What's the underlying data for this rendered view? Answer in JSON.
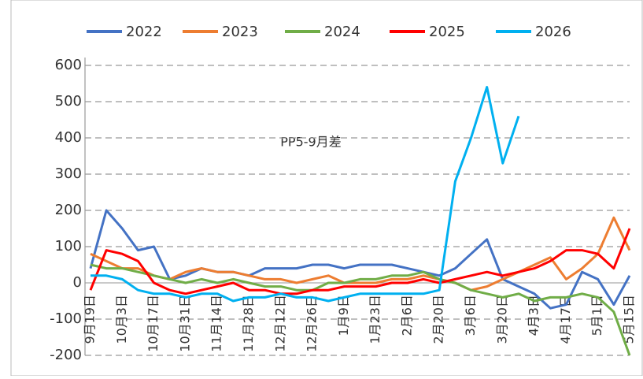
{
  "chart_data": {
    "type": "line",
    "annotation": "PP5-9月差",
    "categories": [
      "9月19日",
      null,
      "10月3日",
      null,
      "10月17日",
      null,
      "10月31日",
      null,
      "11月14日",
      null,
      "11月28日",
      null,
      "12月12日",
      null,
      "12月26日",
      null,
      "1月9日",
      null,
      "1月23日",
      null,
      "2月6日",
      null,
      "2月20日",
      null,
      "3月6日",
      null,
      "3月20日",
      null,
      "4月3日",
      null,
      "4月17日",
      null,
      "5月1日",
      null,
      "5月15日"
    ],
    "series": [
      {
        "name": "2022",
        "color": "#4472c4",
        "values": [
          40,
          200,
          150,
          90,
          100,
          10,
          20,
          40,
          30,
          30,
          20,
          40,
          40,
          40,
          50,
          50,
          40,
          50,
          50,
          50,
          40,
          30,
          20,
          40,
          80,
          120,
          10,
          -10,
          -30,
          -70,
          -60,
          30,
          10,
          -60,
          20
        ]
      },
      {
        "name": "2023",
        "color": "#ed7d31",
        "values": [
          80,
          60,
          40,
          40,
          20,
          10,
          30,
          40,
          30,
          30,
          20,
          10,
          10,
          0,
          10,
          20,
          0,
          0,
          0,
          10,
          10,
          20,
          10,
          0,
          -20,
          -10,
          10,
          30,
          50,
          70,
          10,
          40,
          80,
          180,
          90
        ]
      },
      {
        "name": "2024",
        "color": "#70ad47",
        "values": [
          50,
          40,
          40,
          30,
          20,
          10,
          0,
          10,
          0,
          10,
          0,
          -10,
          -10,
          -20,
          -20,
          0,
          0,
          10,
          10,
          20,
          20,
          30,
          10,
          0,
          -20,
          -30,
          -40,
          -30,
          -50,
          -40,
          -40,
          -30,
          -40,
          -80,
          -200
        ]
      },
      {
        "name": "2025",
        "color": "#ff0000",
        "values": [
          -20,
          90,
          80,
          60,
          0,
          -20,
          -30,
          -20,
          -10,
          0,
          -20,
          -20,
          -30,
          -30,
          -20,
          -20,
          -10,
          -10,
          -10,
          0,
          0,
          10,
          0,
          10,
          20,
          30,
          20,
          30,
          40,
          60,
          90,
          90,
          80,
          40,
          150
        ]
      },
      {
        "name": "2026",
        "color": "#00b0f0",
        "values": [
          20,
          20,
          10,
          -20,
          -30,
          -30,
          -40,
          -30,
          -30,
          -50,
          -40,
          -40,
          -30,
          -40,
          -40,
          -50,
          -40,
          -30,
          -30,
          -30,
          -30,
          -30,
          -20,
          280,
          400,
          540,
          330,
          460,
          null,
          null,
          null,
          null,
          null,
          null,
          null
        ]
      }
    ],
    "ylim": [
      -200,
      600
    ],
    "yticks": [
      -200,
      -100,
      0,
      100,
      200,
      300,
      400,
      500,
      600
    ],
    "grid": true,
    "legend": "top"
  }
}
